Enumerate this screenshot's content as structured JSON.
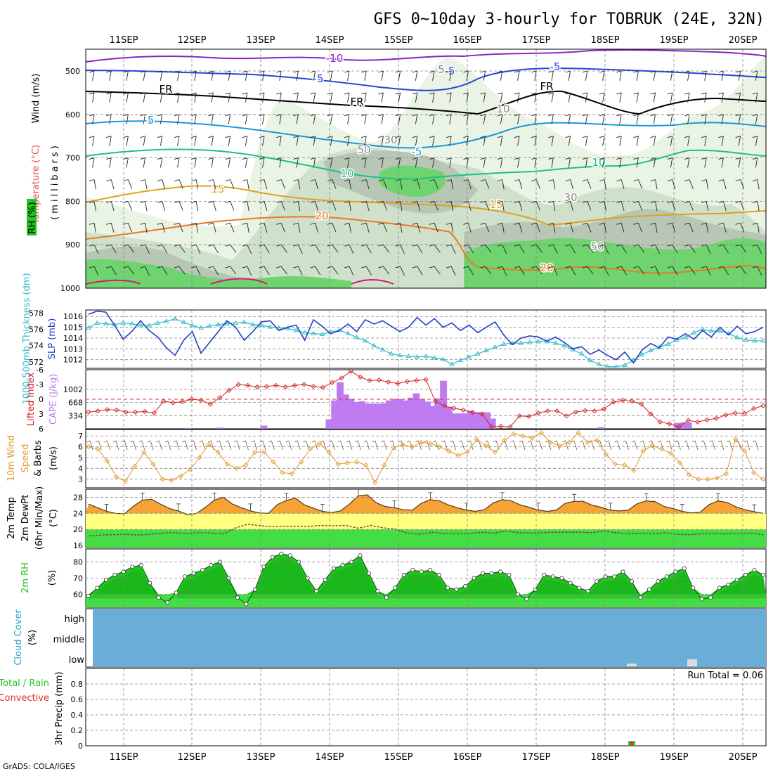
{
  "title": "GFS 0~10day 3-hourly for TOBRUK (24E, 32N)",
  "credit": "GrADS: COLA/IGES",
  "dates": [
    "11SEP",
    "12SEP",
    "13SEP",
    "14SEP",
    "15SEP",
    "16SEP",
    "17SEP",
    "18SEP",
    "19SEP",
    "20SEP"
  ],
  "colors": {
    "rh_light": "#e9f4e4",
    "rh_mid": "#cfe1cb",
    "rh_grey": "#b8c6b6",
    "rh_green": "#6fd46f",
    "cloud": "#6aaed8",
    "cape": "#bf7cf0",
    "wind": "#e39a2c",
    "temp_fill": "#f5a236",
    "dew_fill": "#ffff80",
    "rh2m": "#22c422",
    "slp": "#1f3fc8",
    "thick": "#2cbac8",
    "li": "#d62020"
  },
  "panels": {
    "upper": {
      "ylabel_wind": "Wind (m/s)",
      "ylabel_temp": "Temperature (°C)",
      "ylabel_rh": "RH (%)",
      "ylabel_mb": "(millibars)",
      "yticks": [
        "500",
        "600",
        "700",
        "800",
        "900",
        "1000"
      ],
      "contour_labels": [
        "-10",
        "-5",
        "-5",
        "-5",
        "FR",
        "FR",
        "FR",
        "-5",
        "10",
        "10",
        "15",
        "15",
        "20",
        "20",
        "-5",
        "5",
        "10",
        "30",
        "50",
        "50",
        "30"
      ]
    },
    "slp": {
      "ylabel_left": "1000-500mb Thickness (dm)",
      "ylabel_right": "SLP (mb)",
      "yticks_left": [
        "578",
        "576",
        "574",
        "572"
      ],
      "yticks_right": [
        "1016",
        "1015",
        "1014",
        "1013",
        "1012"
      ]
    },
    "cape": {
      "ylabel_left": "Lifted Index",
      "ylabel_right": "CAPE (J/kg)",
      "yticks_left": [
        "-6",
        "-3",
        "0",
        "3",
        "6"
      ],
      "yticks_right": [
        "1002",
        "668",
        "334"
      ]
    },
    "wind10": {
      "ylabel_a": "10m Wind",
      "ylabel_b": "Speed",
      "ylabel_c": "& Barbs",
      "ylabel_d": "(m/s)",
      "yticks": [
        "7",
        "6",
        "5",
        "4",
        "3"
      ]
    },
    "temp": {
      "ylabel_a": "2m Temp",
      "ylabel_b": "2m DewPt",
      "ylabel_c": "(6hr Min/Max)",
      "ylabel_d": "(°C)",
      "yticks": [
        "28",
        "24",
        "20",
        "16"
      ]
    },
    "rh": {
      "ylabel_a": "2m RH",
      "ylabel_b": "(%)",
      "yticks": [
        "80",
        "70",
        "60"
      ]
    },
    "cloud": {
      "ylabel_a": "Cloud Cover",
      "ylabel_b": "(%)",
      "levels": [
        "high",
        "middle",
        "low"
      ]
    },
    "precip": {
      "ylabel_a": "Total / Rain",
      "ylabel_b": "Convective",
      "ylabel_c": "3hr Precip (mm)",
      "yticks": [
        "0.8",
        "0.6",
        "0.4",
        "0.2",
        "0"
      ],
      "run_total": "Run Total = 0.06"
    }
  },
  "chart_data": [
    {
      "type": "line",
      "name": "slp",
      "series_unit": "mb",
      "ylim": [
        1011.2,
        1016.6
      ],
      "values": [
        1016.2,
        1016.5,
        1016.4,
        1015.2,
        1013.9,
        1014.6,
        1015.6,
        1014.7,
        1014.1,
        1013.1,
        1012.4,
        1013.8,
        1014.6,
        1012.6,
        1013.6,
        1014.6,
        1015.6,
        1015.0,
        1013.8,
        1014.6,
        1015.5,
        1015.6,
        1014.7,
        1015.0,
        1015.2,
        1013.8,
        1015.7,
        1015.1,
        1014.4,
        1014.7,
        1015.3,
        1014.6,
        1015.7,
        1015.3,
        1015.6,
        1015.1,
        1014.6,
        1015.0,
        1015.9,
        1015.2,
        1015.8,
        1015.0,
        1015.4,
        1014.7,
        1015.2,
        1014.5,
        1015.0,
        1015.5,
        1014.3,
        1013.4,
        1014.0,
        1014.2,
        1014.1,
        1013.7,
        1014.1,
        1013.6,
        1013.0,
        1013.2,
        1012.5,
        1012.9,
        1012.4,
        1012.0,
        1012.7,
        1011.7,
        1012.9,
        1013.5,
        1013.1,
        1014.1,
        1013.9,
        1014.4,
        1013.9,
        1014.7,
        1014.1,
        1015.0,
        1014.3,
        1015.1,
        1014.4,
        1014.6,
        1015.0
      ],
      "x_start": "10SEP 12Z",
      "x_step_hours": 3
    },
    {
      "type": "line",
      "name": "thickness",
      "series_unit": "dm",
      "ylim": [
        571.2,
        578.4
      ],
      "values": [
        576.2,
        576.8,
        576.7,
        576.6,
        576.8,
        576.7,
        576.5,
        576.5,
        576.8,
        577.0,
        577.3,
        576.9,
        576.5,
        576.2,
        576.4,
        576.6,
        576.7,
        576.8,
        576.9,
        576.6,
        576.5,
        576.3,
        576.2,
        576.1,
        575.9,
        575.6,
        575.5,
        575.4,
        575.7,
        575.9,
        575.5,
        575.0,
        574.6,
        574.0,
        573.5,
        573.0,
        572.8,
        572.7,
        572.6,
        572.7,
        572.5,
        572.3,
        571.7,
        572.2,
        572.6,
        573.0,
        573.4,
        573.8,
        574.2,
        574.3,
        574.3,
        574.4,
        574.5,
        574.5,
        574.3,
        574.0,
        573.5,
        573.0,
        572.2,
        571.7,
        571.4,
        571.4,
        571.6,
        572.2,
        572.9,
        573.4,
        573.8,
        574.2,
        574.7,
        575.0,
        575.6,
        576.0,
        575.8,
        575.8,
        575.5,
        575.0,
        574.7,
        574.6,
        574.6
      ],
      "x_start": "10SEP 12Z",
      "x_step_hours": 3
    },
    {
      "type": "bar",
      "name": "cape",
      "series_unit": "J/kg",
      "ylim": [
        0,
        1500
      ],
      "values": [
        0,
        0,
        0,
        0,
        0,
        0,
        0,
        0,
        0,
        0,
        0,
        0,
        0,
        0,
        0,
        0,
        0,
        0,
        20,
        0,
        0,
        0,
        0,
        0,
        30,
        0,
        0,
        0,
        0,
        0,
        0,
        0,
        80,
        0,
        0,
        0,
        0,
        0,
        0,
        0,
        0,
        0,
        0,
        0,
        240,
        720,
        1180,
        870,
        760,
        680,
        700,
        640,
        640,
        640,
        650,
        720,
        760,
        760,
        720,
        790,
        900,
        760,
        690,
        580,
        770,
        1220,
        560,
        390,
        390,
        390,
        460,
        420,
        420,
        420,
        260,
        0,
        0,
        0,
        0,
        0,
        0,
        0,
        0,
        0,
        0,
        0,
        0,
        0,
        0,
        0,
        0,
        0,
        0,
        0,
        40,
        0,
        0,
        0,
        0,
        0,
        0,
        0,
        0,
        0,
        0,
        0,
        0,
        0,
        150,
        160,
        160,
        0,
        0,
        0,
        0,
        0,
        0,
        0,
        0,
        0,
        0,
        0,
        0,
        0,
        0
      ],
      "x_start": "10SEP 12Z",
      "x_step_hours": 3
    },
    {
      "type": "line",
      "name": "lifted_index",
      "series_unit": "K",
      "ylim": [
        6,
        -6
      ],
      "values": [
        2.6,
        2.4,
        2.1,
        2.2,
        2.6,
        2.6,
        2.5,
        2.8,
        0.4,
        0.7,
        0.5,
        0.0,
        0.2,
        1.0,
        -0.3,
        -1.8,
        -3.0,
        -2.8,
        -2.5,
        -2.6,
        -2.8,
        -2.5,
        -2.8,
        -3.0,
        -2.6,
        -2.4,
        -3.4,
        -4.3,
        -5.7,
        -4.5,
        -3.8,
        -3.9,
        -3.5,
        -3.2,
        -3.6,
        -3.8,
        -4.0,
        0.4,
        1.4,
        1.8,
        2.2,
        2.7,
        3.0,
        5.6,
        5.5,
        5.6,
        3.4,
        3.5,
        2.8,
        2.4,
        2.4,
        3.4,
        2.6,
        2.3,
        2.4,
        2.0,
        0.6,
        0.2,
        0.4,
        1.0,
        3.0,
        4.6,
        5.0,
        5.6,
        4.3,
        4.6,
        4.2,
        3.9,
        3.2,
        2.8,
        2.9,
        1.9,
        1.3
      ],
      "x_start": "10SEP 12Z",
      "x_step_hours": 3
    },
    {
      "type": "line",
      "name": "wind10m_speed",
      "series_unit": "m/s",
      "ylim": [
        2.2,
        7.6
      ],
      "values": [
        6.0,
        5.8,
        4.7,
        3.2,
        2.8,
        4.2,
        5.5,
        4.4,
        3.0,
        2.9,
        3.3,
        3.9,
        5.0,
        6.2,
        5.5,
        4.4,
        4.0,
        4.3,
        5.5,
        5.5,
        4.6,
        3.6,
        3.5,
        4.6,
        5.8,
        6.3,
        5.5,
        4.4,
        4.5,
        4.6,
        4.3,
        2.7,
        4.3,
        5.9,
        6.2,
        6.0,
        6.4,
        6.3,
        6.0,
        5.6,
        5.2,
        5.5,
        6.7,
        6.1,
        5.5,
        6.6,
        7.2,
        7.0,
        6.8,
        7.3,
        6.4,
        6.1,
        6.4,
        7.3,
        6.4,
        6.6,
        5.3,
        4.4,
        4.3,
        3.8,
        5.6,
        6.1,
        5.8,
        5.4,
        4.5,
        3.4,
        3.0,
        3.0,
        3.1,
        3.5,
        6.7,
        5.6,
        3.6,
        3.0
      ],
      "x_start": "10SEP 12Z",
      "x_step_hours": 3
    },
    {
      "type": "area",
      "name": "temp2m",
      "series_unit": "°C",
      "ylim": [
        15.5,
        30.0
      ],
      "values": [
        26.3,
        25.4,
        24.5,
        24.0,
        23.9,
        25.8,
        27.3,
        27.5,
        26.3,
        25.2,
        24.6,
        23.6,
        24.0,
        25.5,
        27.3,
        28.0,
        26.3,
        25.4,
        24.6,
        24.1,
        24.0,
        26.2,
        27.2,
        27.8,
        26.1,
        25.3,
        24.5,
        24.2,
        24.6,
        26.3,
        28.4,
        28.6,
        26.6,
        25.7,
        25.4,
        24.9,
        24.8,
        26.5,
        27.4,
        27.1,
        26.1,
        25.4,
        24.8,
        24.5,
        24.9,
        26.6,
        27.4,
        27.1,
        26.1,
        25.5,
        24.8,
        24.5,
        24.8,
        26.5,
        27.0,
        27.0,
        26.0,
        25.5,
        24.8,
        24.6,
        24.8,
        26.4,
        27.1,
        26.9,
        25.7,
        25.2,
        24.5,
        24.1,
        24.3,
        26.2,
        27.1,
        26.7,
        25.6,
        24.9,
        24.4,
        24.0
      ],
      "x_start": "10SEP 12Z",
      "x_step_hours": 3
    },
    {
      "type": "line",
      "name": "dewpoint2m",
      "series_unit": "°C",
      "ylim": [
        15.5,
        30.0
      ],
      "values": [
        18.4,
        18.6,
        18.7,
        18.8,
        18.6,
        18.8,
        19.1,
        19.2,
        19.0,
        19.2,
        19.1,
        18.9,
        20.4,
        21.3,
        20.9,
        20.7,
        20.8,
        20.8,
        20.8,
        21.0,
        20.9,
        21.0,
        20.3,
        21.0,
        20.4,
        20.1,
        19.1,
        18.8,
        19.3,
        19.0,
        18.9,
        19.0,
        19.3,
        19.1,
        19.6,
        19.2,
        19.1,
        19.2,
        19.3,
        19.3,
        19.3,
        19.2,
        19.6,
        19.2,
        18.9,
        19.1,
        18.9,
        19.2,
        18.8,
        18.7,
        18.9,
        19.0,
        18.9,
        19.0,
        19.1,
        18.7
      ],
      "x_start": "10SEP 12Z",
      "x_step_hours": 3
    },
    {
      "type": "area",
      "name": "rh2m",
      "series_unit": "%",
      "ylim": [
        52,
        88
      ],
      "values": [
        59,
        64,
        69,
        72,
        74,
        77,
        78,
        67,
        58,
        55,
        61,
        71,
        73,
        75,
        78,
        80,
        70,
        58,
        54,
        63,
        77,
        83,
        85,
        84,
        80,
        70,
        62,
        69,
        76,
        78,
        80,
        84,
        73,
        62,
        58,
        64,
        72,
        75,
        74,
        75,
        72,
        64,
        63,
        65,
        70,
        73,
        73,
        74,
        72,
        60,
        57,
        63,
        72,
        71,
        70,
        67,
        64,
        62,
        68,
        71,
        71,
        74,
        68,
        58,
        63,
        68,
        71,
        74,
        76,
        64,
        57,
        58,
        64,
        66,
        69,
        72,
        75,
        72
      ],
      "x_start": "10SEP 12Z",
      "x_step_hours": 3
    },
    {
      "type": "bar",
      "name": "precip3hr",
      "series_unit": "mm",
      "ylim": [
        0,
        1.0
      ],
      "values": [
        0.06
      ],
      "x": [
        "18SEP 09Z"
      ]
    }
  ]
}
